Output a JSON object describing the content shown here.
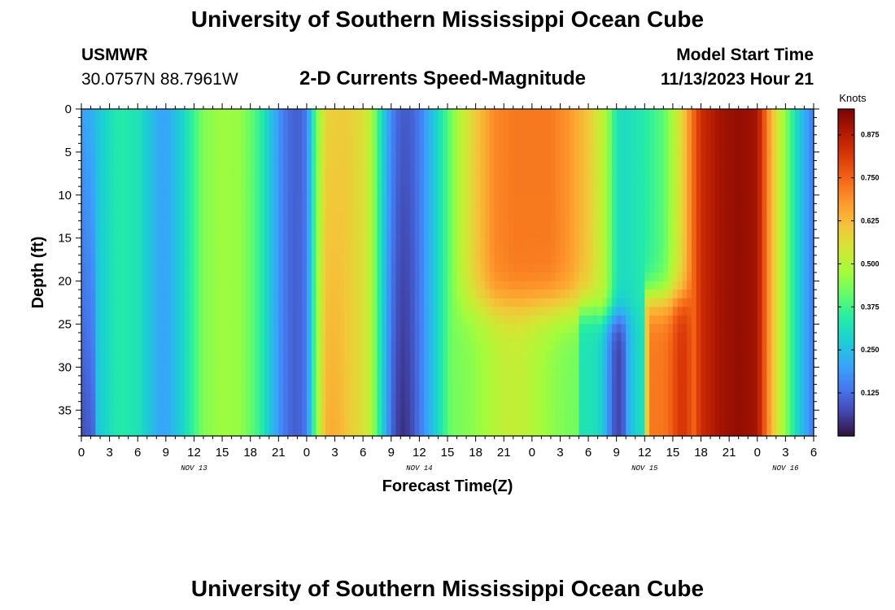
{
  "header": {
    "title": "University of Southern Mississippi Ocean Cube",
    "station": "USMWR",
    "coords": "30.0757N  88.7961W",
    "subtitle": "2-D Currents Speed-Magnitude",
    "model_label": "Model Start Time",
    "model_time": "11/13/2023 Hour 21"
  },
  "footer": {
    "title": "University of Southern Mississippi Ocean Cube"
  },
  "chart_data": {
    "type": "heatmap",
    "title": "2-D Currents Speed-Magnitude",
    "xlabel": "Forecast Time(Z)",
    "ylabel": "Depth (ft)",
    "xlim_hours": [
      0,
      78
    ],
    "ylim_ft": [
      0,
      38
    ],
    "x_tick_labels": [
      "0",
      "3",
      "6",
      "9",
      "12",
      "15",
      "18",
      "21",
      "0",
      "3",
      "6",
      "9",
      "12",
      "15",
      "18",
      "21",
      "0",
      "3",
      "6",
      "9",
      "12",
      "15",
      "18",
      "21",
      "0",
      "3",
      "6"
    ],
    "x_tick_hours": [
      0,
      3,
      6,
      9,
      12,
      15,
      18,
      21,
      24,
      27,
      30,
      33,
      36,
      39,
      42,
      45,
      48,
      51,
      54,
      57,
      60,
      63,
      66,
      69,
      72,
      75,
      78
    ],
    "date_labels": [
      {
        "label": "NOV 13",
        "hour": 12
      },
      {
        "label": "NOV 14",
        "hour": 36
      },
      {
        "label": "NOV 15",
        "hour": 60
      },
      {
        "label": "NOV 16",
        "hour": 75
      }
    ],
    "y_tick_labels": [
      "0",
      "5",
      "10",
      "15",
      "20",
      "25",
      "30",
      "35"
    ],
    "y_tick_values": [
      0,
      5,
      10,
      15,
      20,
      25,
      30,
      35
    ],
    "colorbar": {
      "label": "Knots",
      "range": [
        0,
        0.95
      ],
      "tick_labels": [
        "0.125",
        "0.250",
        "0.375",
        "0.500",
        "0.625",
        "0.750",
        "0.875"
      ],
      "tick_values": [
        0.125,
        0.25,
        0.375,
        0.5,
        0.625,
        0.75,
        0.875
      ]
    },
    "surface_speed_profile": {
      "hours": [
        0,
        1,
        2,
        4,
        6,
        8,
        9,
        11,
        13,
        15,
        17,
        19,
        20,
        21,
        22,
        23,
        24,
        25,
        26,
        28,
        30,
        31,
        32,
        33,
        34,
        35,
        36,
        38,
        40,
        42,
        44,
        46,
        48,
        50,
        52,
        54,
        56,
        57,
        58,
        60,
        62,
        64,
        65,
        66,
        68,
        70,
        72,
        73,
        74,
        75,
        76,
        77,
        78
      ],
      "speeds": [
        0.2,
        0.22,
        0.27,
        0.34,
        0.32,
        0.22,
        0.2,
        0.3,
        0.44,
        0.47,
        0.46,
        0.36,
        0.27,
        0.18,
        0.12,
        0.1,
        0.14,
        0.42,
        0.58,
        0.6,
        0.56,
        0.48,
        0.3,
        0.16,
        0.1,
        0.1,
        0.14,
        0.3,
        0.48,
        0.6,
        0.7,
        0.72,
        0.72,
        0.72,
        0.68,
        0.6,
        0.44,
        0.3,
        0.3,
        0.34,
        0.4,
        0.58,
        0.72,
        0.84,
        0.9,
        0.92,
        0.9,
        0.72,
        0.56,
        0.45,
        0.32,
        0.22,
        0.14
      ]
    }
  }
}
